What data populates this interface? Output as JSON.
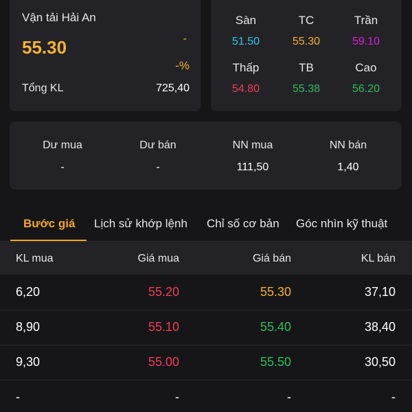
{
  "stock": {
    "name": "Vận tải Hải An",
    "price": "55.30",
    "change": "-",
    "change_pct": "-%",
    "volume_label": "Tổng KL",
    "volume_value": "725,40"
  },
  "price_grid": {
    "floor_label": "Sàn",
    "floor_value": "51.50",
    "ref_label": "TC",
    "ref_value": "55.30",
    "ceiling_label": "Trần",
    "ceiling_value": "59.10",
    "low_label": "Thấp",
    "low_value": "54.80",
    "avg_label": "TB",
    "avg_value": "55.38",
    "high_label": "Cao",
    "high_value": "56.20"
  },
  "surplus": {
    "buy_surplus_label": "Dư mua",
    "buy_surplus_value": "-",
    "sell_surplus_label": "Dư bán",
    "sell_surplus_value": "-",
    "foreign_buy_label": "NN mua",
    "foreign_buy_value": "111,50",
    "foreign_sell_label": "NN bán",
    "foreign_sell_value": "1,40"
  },
  "tabs": [
    {
      "label": "Bước giá",
      "active": true
    },
    {
      "label": "Lịch sử khớp lệnh",
      "active": false
    },
    {
      "label": "Chỉ số cơ bản",
      "active": false
    },
    {
      "label": "Góc nhìn kỹ thuật",
      "active": false
    }
  ],
  "order_book": {
    "headers": {
      "bid_vol": "KL mua",
      "bid_price": "Giá mua",
      "ask_price": "Giá bán",
      "ask_vol": "KL bán"
    },
    "rows": [
      {
        "bid_vol": "6,20",
        "bid_price": "55.20",
        "ask_price": "55.30",
        "ask_vol": "37,10"
      },
      {
        "bid_vol": "8,90",
        "bid_price": "55.10",
        "ask_price": "55.40",
        "ask_vol": "38,40"
      },
      {
        "bid_vol": "9,30",
        "bid_price": "55.00",
        "ask_price": "55.50",
        "ask_vol": "30,50"
      },
      {
        "bid_vol": "-",
        "bid_price": "-",
        "ask_price": "-",
        "ask_vol": "-"
      }
    ]
  },
  "colors": {
    "accent": "#f5a623",
    "up": "#2fbf5f",
    "down": "#ef3e5a",
    "reference": "#f5b331",
    "floor": "#33c8e6",
    "ceiling": "#e11bd8",
    "background": "#161618",
    "card": "#232327"
  }
}
